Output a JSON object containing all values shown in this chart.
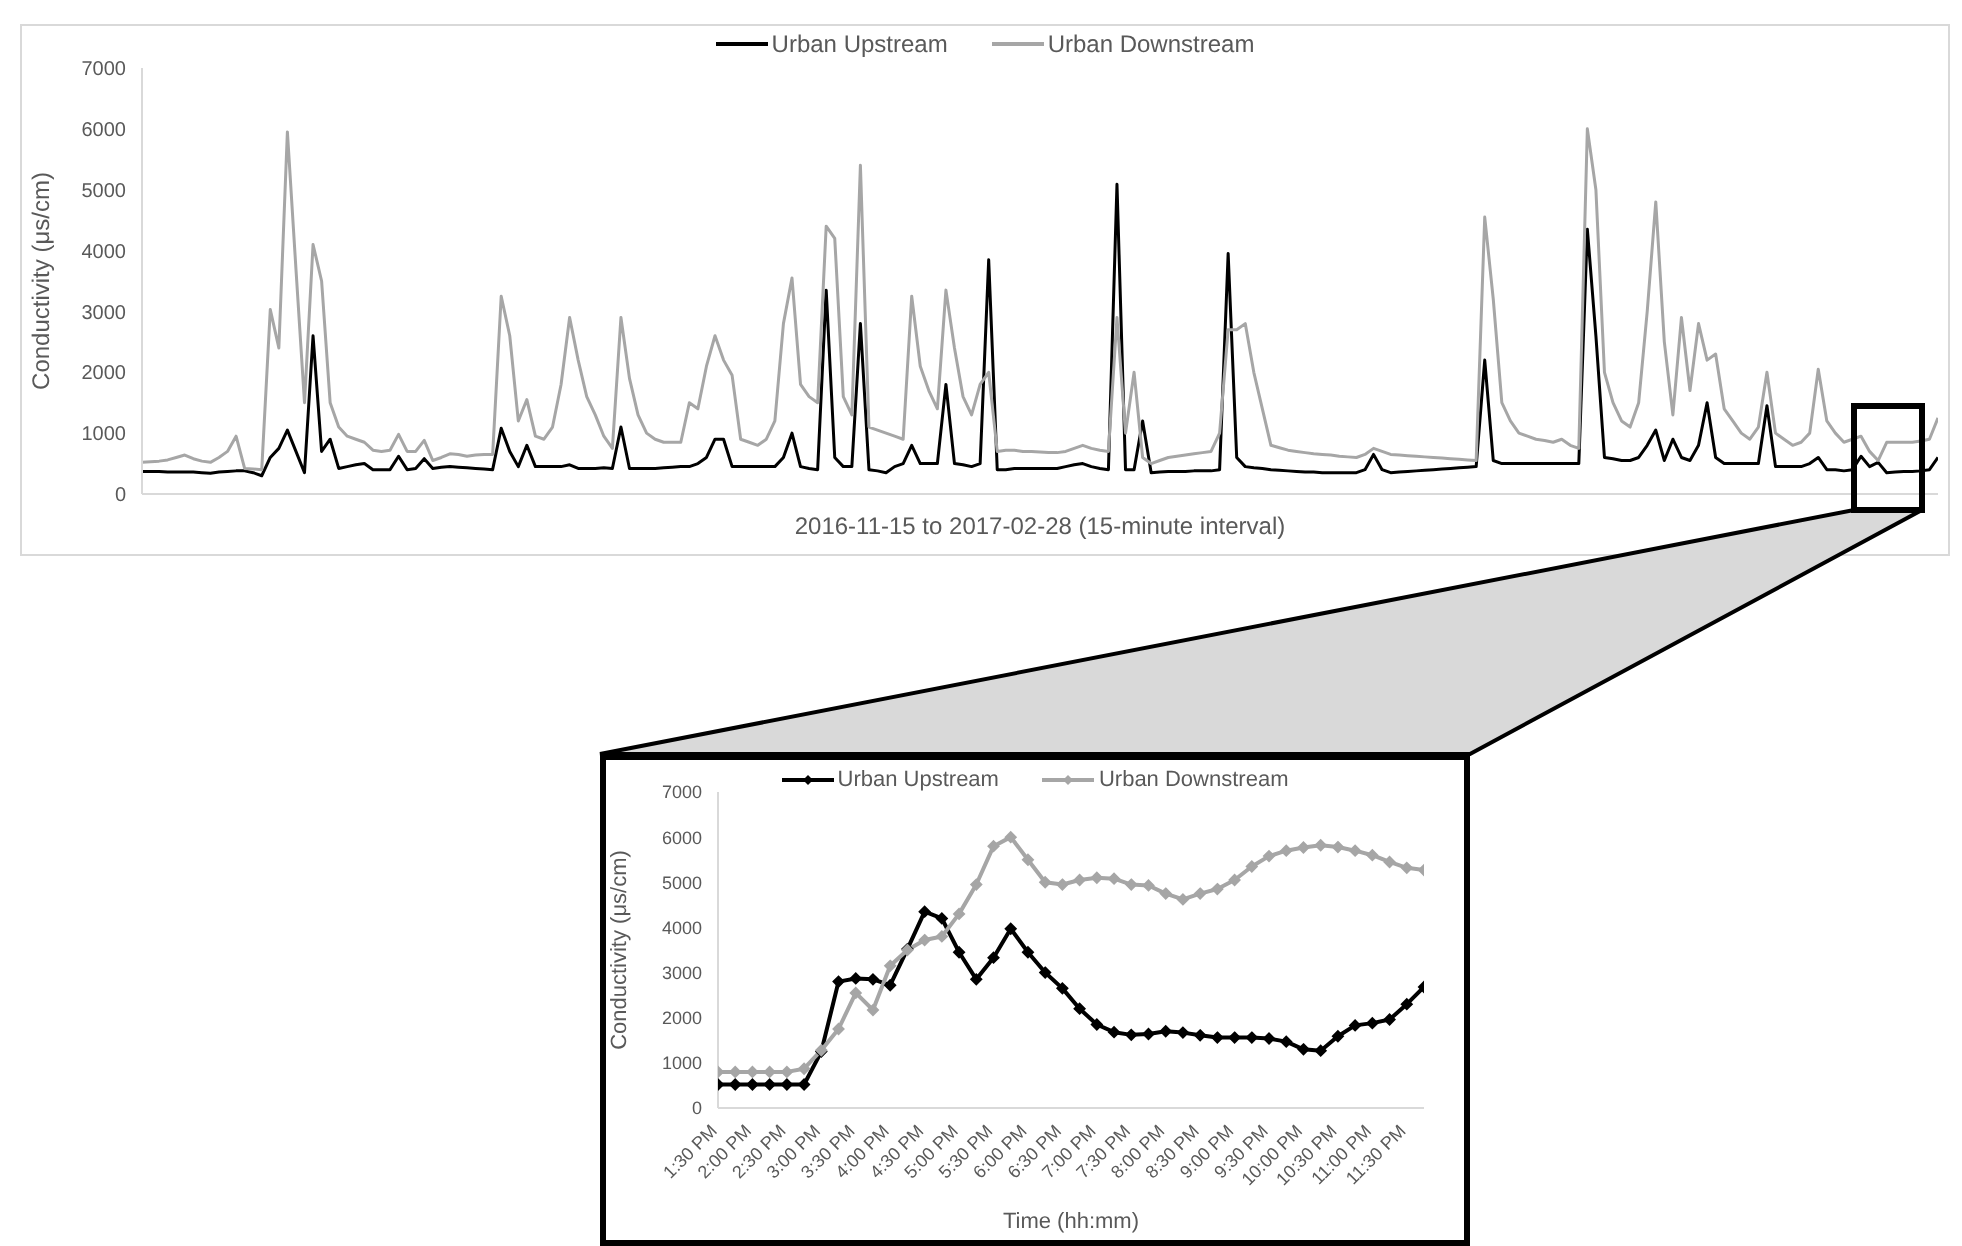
{
  "chart_data": [
    {
      "type": "line",
      "xlabel": "2016-11-15 to 2017-02-28 (15-minute interval)",
      "ylabel": "Conductivity (μs/cm)",
      "legend": "top",
      "grid": false,
      "marker": "none",
      "tick_labels": "y",
      "ylim": [
        0,
        7000
      ],
      "yticks": [
        0,
        1000,
        2000,
        3000,
        4000,
        5000,
        6000,
        7000
      ],
      "categories": [
        null,
        null,
        null,
        null,
        null,
        null,
        null,
        null,
        null,
        null,
        null,
        null,
        null,
        null,
        null,
        null,
        null,
        null,
        null,
        null,
        null,
        null,
        null,
        null,
        null,
        null,
        null,
        null,
        null,
        null,
        null,
        null,
        null,
        null,
        null,
        null,
        null,
        null,
        null,
        null,
        null,
        null,
        null,
        null,
        null,
        null,
        null,
        null,
        null,
        null,
        null,
        null,
        null,
        null,
        null,
        null,
        null,
        null,
        null,
        null,
        null,
        null,
        null,
        null,
        null,
        null,
        null,
        null,
        null,
        null,
        null,
        null,
        null,
        null,
        null,
        null,
        null,
        null,
        null,
        null,
        null,
        null,
        null,
        null,
        null,
        null,
        null,
        null,
        null,
        null,
        null,
        null,
        null,
        null,
        null,
        null,
        null,
        null,
        null,
        null,
        null,
        null,
        null,
        null,
        null,
        null,
        null,
        null,
        null,
        null,
        null,
        null,
        null,
        null,
        null,
        null,
        null,
        null,
        null,
        null,
        null,
        null,
        null,
        null,
        null,
        null,
        null,
        null,
        null,
        null,
        null,
        null,
        null,
        null,
        null,
        null,
        null,
        null,
        null,
        null,
        null,
        null,
        null,
        null,
        null,
        null,
        null,
        null,
        null,
        null,
        null,
        null,
        null,
        null,
        null,
        null,
        null,
        null,
        null,
        null,
        null,
        null,
        null,
        null,
        null,
        null,
        null,
        null,
        null,
        null,
        null,
        null,
        null,
        null,
        null,
        null,
        null,
        null,
        null,
        null,
        null,
        null,
        null,
        null,
        null,
        null,
        null,
        null,
        null,
        null,
        null,
        null,
        null,
        null,
        null,
        null,
        null,
        null,
        null,
        null,
        null,
        null,
        null,
        null,
        null,
        null,
        null,
        null,
        null,
        null,
        null
      ],
      "series": [
        {
          "name": "Urban Upstream",
          "color": "#000000",
          "values": [
            370,
            370,
            370,
            360,
            360,
            360,
            360,
            350,
            340,
            360,
            370,
            380,
            380,
            350,
            300,
            600,
            750,
            1050,
            700,
            350,
            2600,
            700,
            900,
            420,
            450,
            480,
            500,
            400,
            400,
            400,
            620,
            400,
            420,
            580,
            420,
            440,
            450,
            440,
            430,
            420,
            410,
            400,
            1080,
            700,
            450,
            800,
            450,
            450,
            450,
            450,
            480,
            420,
            420,
            420,
            430,
            420,
            1100,
            420,
            420,
            420,
            420,
            430,
            440,
            450,
            450,
            500,
            600,
            900,
            900,
            450,
            450,
            450,
            450,
            450,
            450,
            600,
            1000,
            450,
            420,
            400,
            3350,
            600,
            450,
            450,
            2800,
            400,
            380,
            350,
            450,
            500,
            800,
            500,
            500,
            500,
            1800,
            500,
            480,
            450,
            500,
            3850,
            400,
            400,
            420,
            420,
            420,
            420,
            420,
            420,
            450,
            480,
            500,
            450,
            420,
            400,
            5090,
            400,
            400,
            1200,
            350,
            360,
            370,
            370,
            370,
            380,
            380,
            380,
            400,
            3950,
            600,
            450,
            430,
            420,
            400,
            390,
            380,
            370,
            360,
            360,
            350,
            350,
            350,
            350,
            350,
            400,
            650,
            400,
            350,
            360,
            370,
            380,
            390,
            400,
            410,
            420,
            430,
            440,
            450,
            2200,
            550,
            500,
            500,
            500,
            500,
            500,
            500,
            500,
            500,
            500,
            500,
            4350,
            2600,
            600,
            580,
            550,
            550,
            600,
            800,
            1050,
            550,
            900,
            600,
            550,
            800,
            1500,
            600,
            500,
            500,
            500,
            500,
            500,
            1450,
            450,
            450,
            450,
            450,
            500,
            600,
            400,
            400,
            380,
            400,
            620,
            450,
            520,
            350,
            360,
            370,
            370,
            380,
            400,
            600
          ]
        },
        {
          "name": "Urban Downstream",
          "color": "#a6a6a6",
          "values": [
            520,
            530,
            540,
            560,
            600,
            640,
            580,
            540,
            520,
            600,
            700,
            950,
            420,
            410,
            400,
            3030,
            2400,
            5950,
            3700,
            1500,
            4100,
            3500,
            1500,
            1100,
            950,
            900,
            850,
            720,
            700,
            720,
            980,
            700,
            700,
            880,
            550,
            600,
            660,
            650,
            620,
            640,
            650,
            650,
            3250,
            2600,
            1200,
            1550,
            950,
            900,
            1100,
            1800,
            2900,
            2200,
            1600,
            1300,
            950,
            750,
            2900,
            1900,
            1300,
            1000,
            900,
            850,
            850,
            850,
            1500,
            1400,
            2100,
            2600,
            2200,
            1950,
            900,
            850,
            800,
            900,
            1200,
            2800,
            3550,
            1800,
            1600,
            1500,
            4400,
            4200,
            1600,
            1300,
            5400,
            1100,
            1050,
            1000,
            950,
            900,
            3250,
            2100,
            1700,
            1400,
            3350,
            2400,
            1600,
            1300,
            1800,
            2000,
            700,
            720,
            720,
            700,
            700,
            690,
            680,
            680,
            700,
            750,
            800,
            750,
            720,
            700,
            2900,
            1000,
            2000,
            600,
            500,
            550,
            600,
            620,
            640,
            660,
            680,
            700,
            1000,
            2700,
            2700,
            2800,
            2000,
            1400,
            800,
            760,
            720,
            700,
            680,
            660,
            650,
            640,
            620,
            610,
            600,
            650,
            750,
            700,
            650,
            640,
            630,
            620,
            610,
            600,
            590,
            580,
            570,
            560,
            550,
            4550,
            3200,
            1500,
            1200,
            1000,
            950,
            900,
            880,
            850,
            900,
            800,
            750,
            6000,
            5000,
            2000,
            1500,
            1200,
            1100,
            1500,
            3000,
            4800,
            2500,
            1300,
            2900,
            1700,
            2800,
            2200,
            2300,
            1400,
            1200,
            1000,
            900,
            1100,
            2000,
            1000,
            900,
            800,
            850,
            1000,
            2050,
            1200,
            1000,
            850,
            900,
            950,
            700,
            550,
            850,
            850,
            850,
            850,
            870,
            900,
            1250
          ]
        }
      ]
    },
    {
      "type": "line",
      "xlabel": "Time (hh:mm)",
      "ylabel": "Conductivity (μs/cm)",
      "legend": "top",
      "grid": false,
      "marker": "diamond",
      "xlim": [
        13.5,
        23.75
      ],
      "ylim": [
        0,
        7000
      ],
      "yticks": [
        0,
        1000,
        2000,
        3000,
        4000,
        5000,
        6000,
        7000
      ],
      "xticks": [
        {
          "value": 13.5,
          "label": "1:30 PM"
        },
        {
          "value": 14,
          "label": "2:00 PM"
        },
        {
          "value": 14.5,
          "label": "2:30 PM"
        },
        {
          "value": 15,
          "label": "3:00 PM"
        },
        {
          "value": 15.5,
          "label": "3:30 PM"
        },
        {
          "value": 16,
          "label": "4:00 PM"
        },
        {
          "value": 16.5,
          "label": "4:30 PM"
        },
        {
          "value": 17,
          "label": "5:00 PM"
        },
        {
          "value": 17.5,
          "label": "5:30 PM"
        },
        {
          "value": 18,
          "label": "6:00 PM"
        },
        {
          "value": 18.5,
          "label": "6:30 PM"
        },
        {
          "value": 19,
          "label": "7:00 PM"
        },
        {
          "value": 19.5,
          "label": "7:30 PM"
        },
        {
          "value": 20,
          "label": "8:00 PM"
        },
        {
          "value": 20.5,
          "label": "8:30 PM"
        },
        {
          "value": 21,
          "label": "9:00 PM"
        },
        {
          "value": 21.5,
          "label": "9:30 PM"
        },
        {
          "value": 22,
          "label": "10:00 PM"
        },
        {
          "value": 22.5,
          "label": "10:30 PM"
        },
        {
          "value": 23,
          "label": "11:00 PM"
        },
        {
          "value": 23.5,
          "label": "11:30 PM"
        }
      ],
      "x": [
        13.5,
        13.75,
        14,
        14.25,
        14.5,
        14.75,
        15,
        15.25,
        15.5,
        15.75,
        16,
        16.25,
        16.5,
        16.75,
        17,
        17.25,
        17.5,
        17.75,
        18,
        18.25,
        18.5,
        18.75,
        19,
        19.25,
        19.5,
        19.75,
        20,
        20.25,
        20.5,
        20.75,
        21,
        21.25,
        21.5,
        21.75,
        22,
        22.25,
        22.5,
        22.75,
        23,
        23.25,
        23.5,
        23.75
      ],
      "series": [
        {
          "name": "Urban Upstream",
          "color": "#000000",
          "values": [
            520,
            520,
            520,
            520,
            520,
            520,
            1250,
            2800,
            2870,
            2850,
            2720,
            3520,
            4350,
            4200,
            3450,
            2850,
            3330,
            3970,
            3450,
            3000,
            2650,
            2200,
            1850,
            1680,
            1620,
            1640,
            1700,
            1670,
            1610,
            1560,
            1560,
            1560,
            1540,
            1470,
            1300,
            1270,
            1590,
            1830,
            1880,
            1960,
            2300,
            2680
          ]
        },
        {
          "name": "Urban Downstream",
          "color": "#a6a6a6",
          "values": [
            800,
            800,
            800,
            800,
            800,
            870,
            1280,
            1750,
            2550,
            2170,
            3150,
            3500,
            3720,
            3800,
            4300,
            4950,
            5800,
            6000,
            5500,
            5000,
            4950,
            5050,
            5100,
            5080,
            4950,
            4930,
            4750,
            4620,
            4750,
            4850,
            5050,
            5350,
            5580,
            5700,
            5770,
            5820,
            5780,
            5700,
            5600,
            5450,
            5320,
            5270
          ]
        }
      ]
    }
  ]
}
